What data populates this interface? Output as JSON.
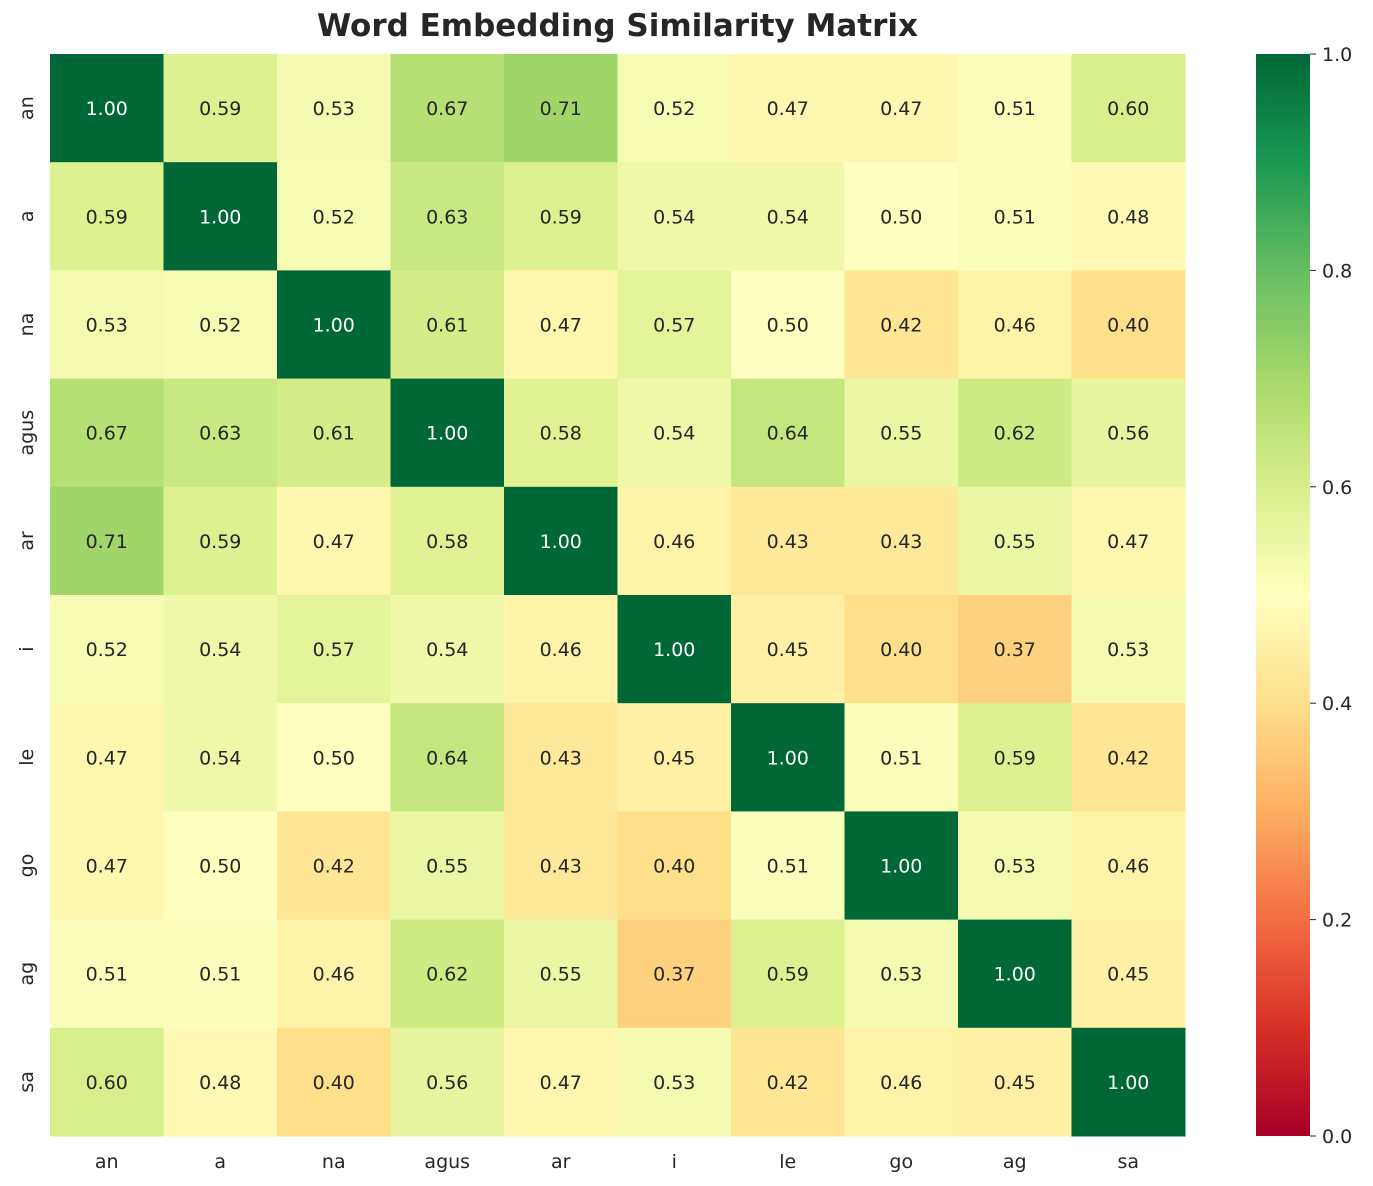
{
  "chart_data": {
    "type": "heatmap",
    "title": "Word Embedding Similarity Matrix",
    "row_labels": [
      "an",
      "a",
      "na",
      "agus",
      "ar",
      "i",
      "le",
      "go",
      "ag",
      "sa"
    ],
    "col_labels": [
      "an",
      "a",
      "na",
      "agus",
      "ar",
      "i",
      "le",
      "go",
      "ag",
      "sa"
    ],
    "values": [
      [
        1.0,
        0.59,
        0.53,
        0.67,
        0.71,
        0.52,
        0.47,
        0.47,
        0.51,
        0.6
      ],
      [
        0.59,
        1.0,
        0.52,
        0.63,
        0.59,
        0.54,
        0.54,
        0.5,
        0.51,
        0.48
      ],
      [
        0.53,
        0.52,
        1.0,
        0.61,
        0.47,
        0.57,
        0.5,
        0.42,
        0.46,
        0.4
      ],
      [
        0.67,
        0.63,
        0.61,
        1.0,
        0.58,
        0.54,
        0.64,
        0.55,
        0.62,
        0.56
      ],
      [
        0.71,
        0.59,
        0.47,
        0.58,
        1.0,
        0.46,
        0.43,
        0.43,
        0.55,
        0.47
      ],
      [
        0.52,
        0.54,
        0.57,
        0.54,
        0.46,
        1.0,
        0.45,
        0.4,
        0.37,
        0.53
      ],
      [
        0.47,
        0.54,
        0.5,
        0.64,
        0.43,
        0.45,
        1.0,
        0.51,
        0.59,
        0.42
      ],
      [
        0.47,
        0.5,
        0.42,
        0.55,
        0.43,
        0.4,
        0.51,
        1.0,
        0.53,
        0.46
      ],
      [
        0.51,
        0.51,
        0.46,
        0.62,
        0.55,
        0.37,
        0.59,
        0.53,
        1.0,
        0.45
      ],
      [
        0.6,
        0.48,
        0.4,
        0.56,
        0.47,
        0.53,
        0.42,
        0.46,
        0.45,
        1.0
      ]
    ],
    "value_format": "0.00",
    "colormap": "RdYlGn",
    "vmin": 0.0,
    "vmax": 1.0,
    "colorbar_ticks": [
      "0.0",
      "0.2",
      "0.4",
      "0.6",
      "0.8",
      "1.0"
    ],
    "colorbar_tick_values": [
      0.0,
      0.2,
      0.4,
      0.6,
      0.8,
      1.0
    ],
    "annotation_colors": {
      "dark": "#262626",
      "light": "#ffffff"
    },
    "grid": false,
    "legend": "colorbar-right"
  }
}
